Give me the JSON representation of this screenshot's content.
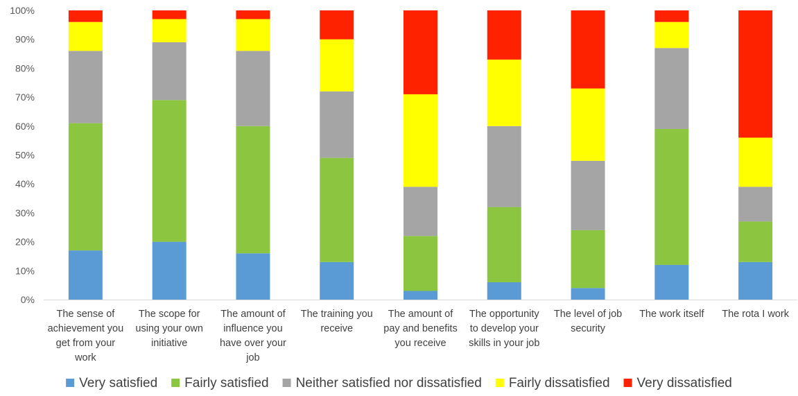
{
  "chart_data": {
    "type": "bar",
    "stacked": true,
    "normalized": true,
    "categories": [
      [
        "The sense of",
        "achievement you",
        "get from your",
        "work"
      ],
      [
        "The scope for",
        "using your own",
        "initiative"
      ],
      [
        "The amount of",
        "influence you",
        "have over your",
        "job"
      ],
      [
        "The training you",
        "receive"
      ],
      [
        "The amount of",
        "pay and benefits",
        "you receive"
      ],
      [
        "The opportunity",
        "to develop your",
        "skills in your job"
      ],
      [
        "The level of job",
        "security"
      ],
      [
        "The work itself"
      ],
      [
        "The rota I work"
      ]
    ],
    "series": [
      {
        "name": "Very satisfied",
        "color": "#5B9BD5",
        "values": [
          17,
          20,
          16,
          13,
          3,
          6,
          4,
          12,
          13
        ]
      },
      {
        "name": "Fairly satisfied",
        "color": "#8CC640",
        "values": [
          44,
          49,
          44,
          36,
          19,
          26,
          20,
          47,
          14
        ]
      },
      {
        "name": "Neither satisfied nor dissatisfied",
        "color": "#A5A5A5",
        "values": [
          25,
          20,
          26,
          23,
          17,
          28,
          24,
          28,
          12
        ]
      },
      {
        "name": "Fairly dissatisfied",
        "color": "#FFFF00",
        "values": [
          10,
          8,
          11,
          18,
          32,
          23,
          25,
          9,
          17
        ]
      },
      {
        "name": "Very dissatisfied",
        "color": "#FF2200",
        "values": [
          4,
          3,
          3,
          10,
          29,
          17,
          27,
          4,
          44
        ]
      }
    ],
    "yticks": [
      "0%",
      "10%",
      "20%",
      "30%",
      "40%",
      "50%",
      "60%",
      "70%",
      "80%",
      "90%",
      "100%"
    ],
    "ylim": [
      0,
      100
    ],
    "grid": false,
    "legend_position": "bottom"
  }
}
